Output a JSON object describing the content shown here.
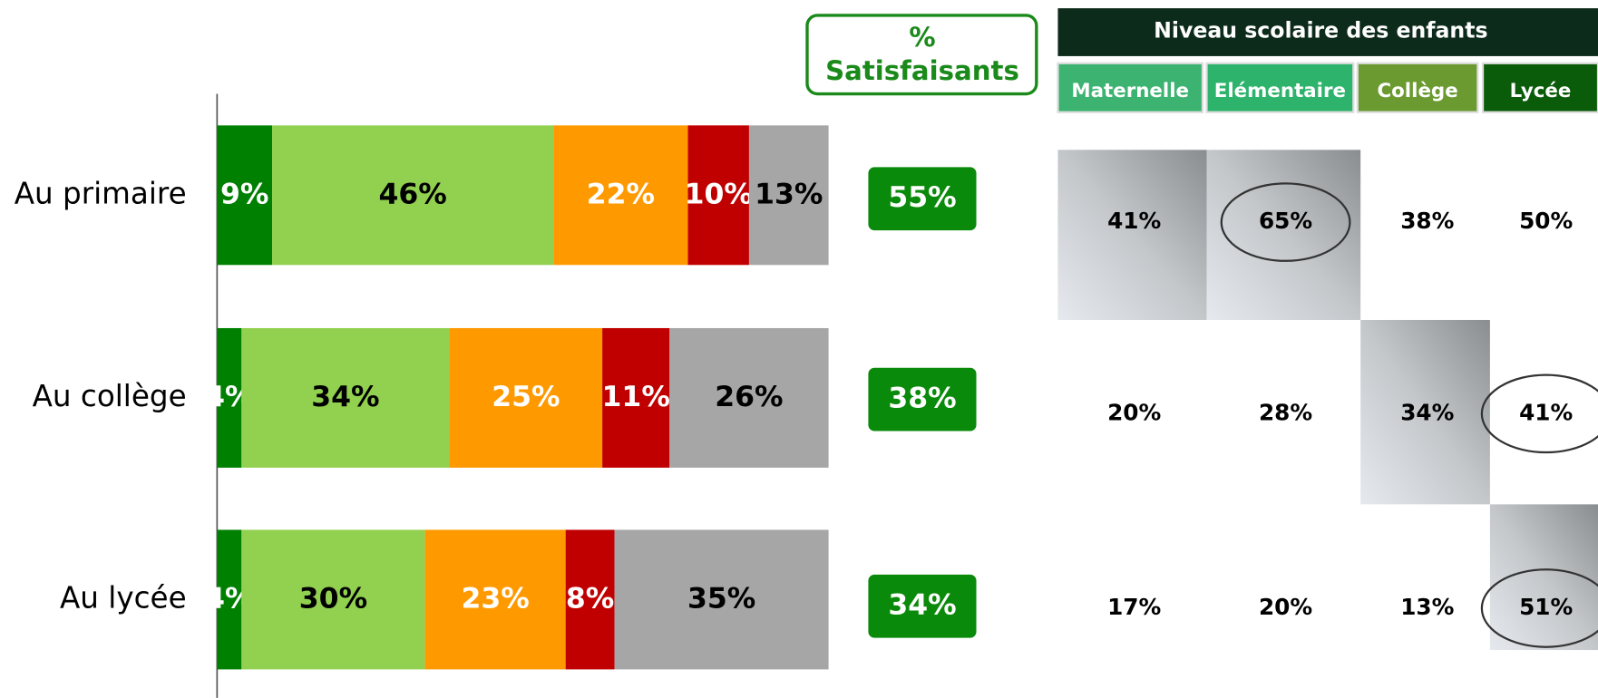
{
  "chart_data": {
    "type": "bar",
    "orientation": "horizontal",
    "stacked": true,
    "categories": [
      "Au primaire",
      "Au collège",
      "Au lycée"
    ],
    "xlim": [
      0,
      100
    ],
    "series": [
      {
        "color": "#008000",
        "label_color": "#ffffff",
        "values": [
          9,
          4,
          4
        ],
        "value_labels": [
          "9%",
          "4%",
          "4%"
        ]
      },
      {
        "color": "#92d050",
        "label_color": "#000000",
        "values": [
          46,
          34,
          30
        ],
        "value_labels": [
          "46%",
          "34%",
          "30%"
        ]
      },
      {
        "color": "#ff9900",
        "label_color": "#ffffff",
        "values": [
          22,
          25,
          23
        ],
        "value_labels": [
          "22%",
          "25%",
          "23%"
        ]
      },
      {
        "color": "#c00000",
        "label_color": "#ffffff",
        "values": [
          10,
          11,
          8
        ],
        "value_labels": [
          "10%",
          "11%",
          "8%"
        ]
      },
      {
        "color": "#a6a6a6",
        "label_color": "#000000",
        "values": [
          13,
          26,
          35
        ],
        "value_labels": [
          "13%",
          "26%",
          "35%"
        ]
      }
    ]
  },
  "satisfaction": {
    "title_lines": [
      "%",
      "Satisfaisants"
    ],
    "values": [
      "55%",
      "38%",
      "34%"
    ],
    "color": "#0a8a0a"
  },
  "table": {
    "title": "Niveau scolaire des enfants",
    "columns": [
      {
        "label": "Maternelle",
        "color": "#3cb371"
      },
      {
        "label": "Elémentaire",
        "color": "#2db36b"
      },
      {
        "label": "Collège",
        "color": "#6a9a30"
      },
      {
        "label": "Lycée",
        "color": "#0a5c0a"
      }
    ],
    "rows": [
      [
        "41%",
        "65%",
        "38%",
        "50%"
      ],
      [
        "20%",
        "28%",
        "34%",
        "41%"
      ],
      [
        "17%",
        "20%",
        "13%",
        "51%"
      ]
    ],
    "shaded": [
      [
        0,
        0
      ],
      [
        0,
        1
      ],
      [
        1,
        2
      ],
      [
        2,
        3
      ]
    ],
    "circled": [
      [
        0,
        1
      ],
      [
        1,
        3
      ],
      [
        2,
        3
      ]
    ]
  }
}
